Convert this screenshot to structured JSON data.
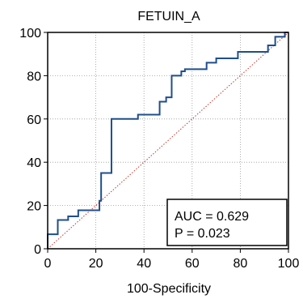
{
  "chart_data": {
    "type": "line",
    "title": "FETUIN_A",
    "xlabel": "100-Specificity",
    "ylabel": "",
    "xlim": [
      0,
      100
    ],
    "ylim": [
      0,
      100
    ],
    "xticks": [
      0,
      20,
      40,
      60,
      80,
      100
    ],
    "yticks": [
      0,
      20,
      40,
      60,
      80,
      100
    ],
    "grid": true,
    "series": [
      {
        "values": [
          [
            0,
            0
          ],
          [
            0,
            6.7
          ],
          [
            4.2,
            6.7
          ],
          [
            4.2,
            13.3
          ],
          [
            8.5,
            13.3
          ],
          [
            8.5,
            15
          ],
          [
            12.7,
            15
          ],
          [
            12.7,
            17.8
          ],
          [
            21.5,
            17.8
          ],
          [
            21.5,
            22.2
          ],
          [
            22.2,
            22.2
          ],
          [
            22.2,
            35
          ],
          [
            26.5,
            35
          ],
          [
            26.5,
            60
          ],
          [
            37.5,
            60
          ],
          [
            37.5,
            62
          ],
          [
            46.5,
            62
          ],
          [
            46.5,
            68
          ],
          [
            49.2,
            68
          ],
          [
            49.2,
            70
          ],
          [
            51.5,
            70
          ],
          [
            51.5,
            80
          ],
          [
            55.5,
            80
          ],
          [
            55.5,
            82
          ],
          [
            57,
            82
          ],
          [
            57,
            83
          ],
          [
            66,
            83
          ],
          [
            66,
            86
          ],
          [
            70,
            86
          ],
          [
            70,
            88
          ],
          [
            79,
            88
          ],
          [
            79,
            91
          ],
          [
            91.5,
            91
          ],
          [
            91.5,
            94
          ],
          [
            94.5,
            94
          ],
          [
            94.5,
            98
          ],
          [
            98.5,
            98
          ],
          [
            98.5,
            100
          ],
          [
            100,
            100
          ]
        ],
        "color": "#1f4e8c"
      },
      {
        "values": [
          [
            0,
            0
          ],
          [
            100,
            100
          ]
        ],
        "color": "#c0392b",
        "style": "dotted"
      }
    ],
    "annotations": {
      "auc": "AUC = 0.629",
      "p": "P = 0.023",
      "placement": "bottom-right"
    }
  }
}
